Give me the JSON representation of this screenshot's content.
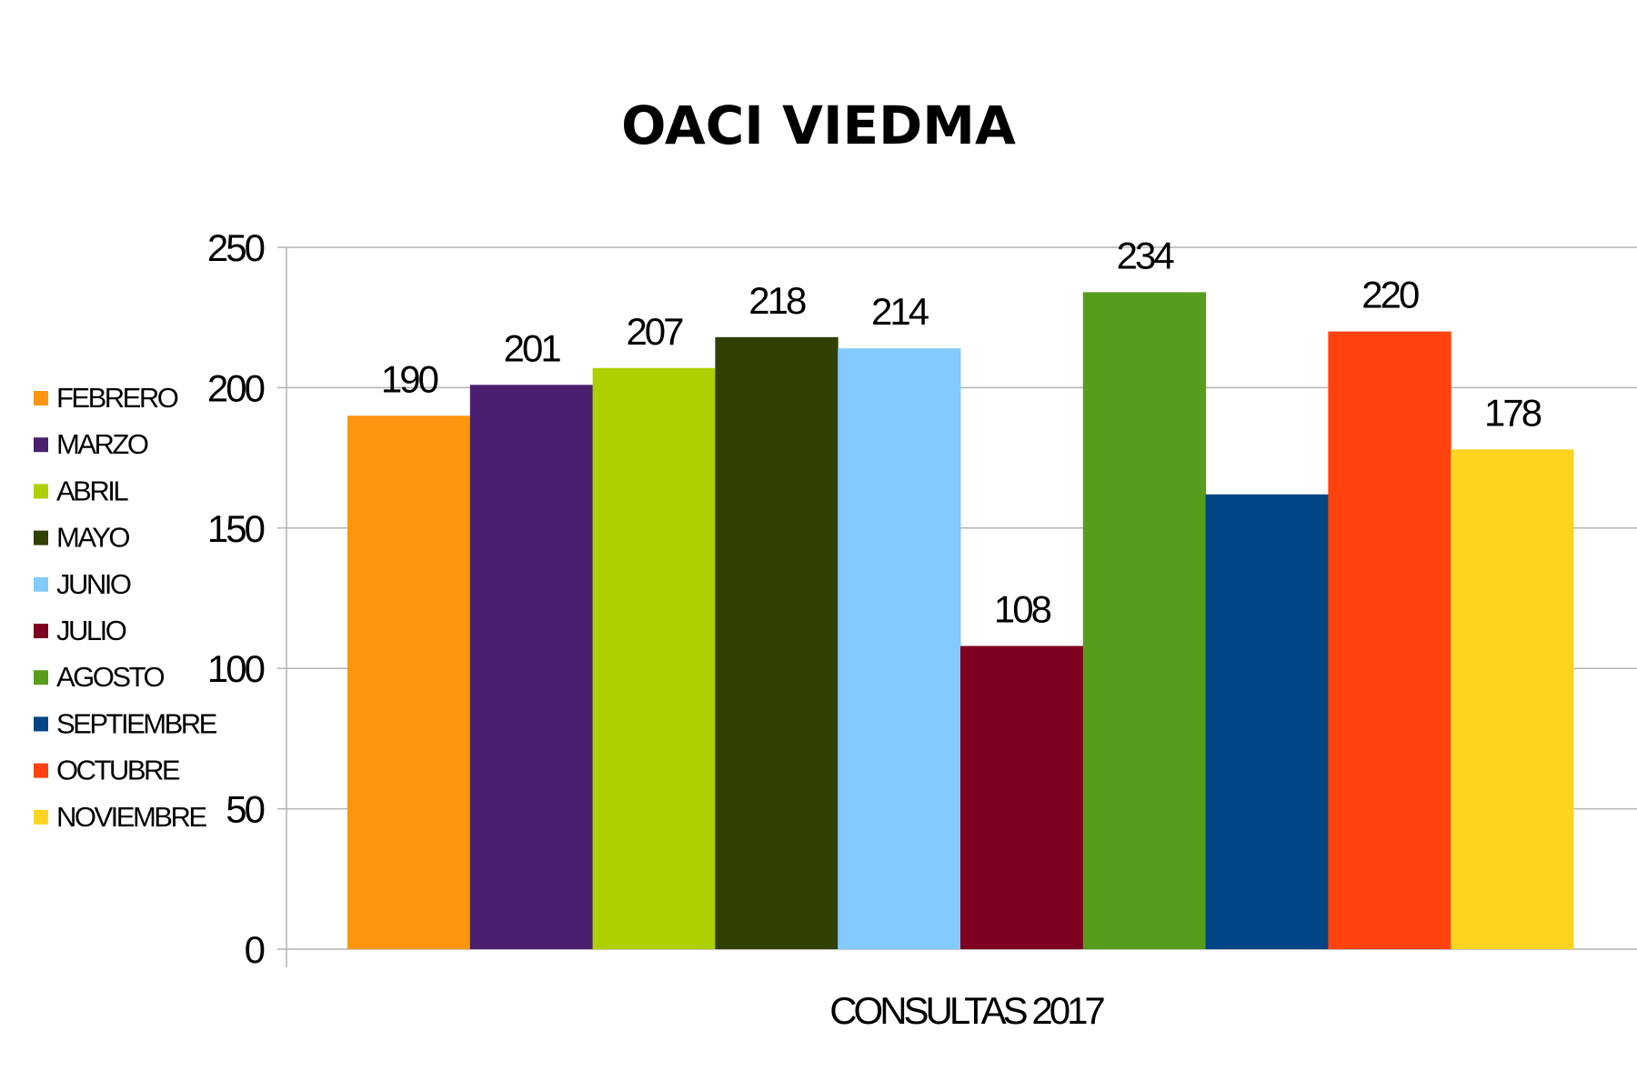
{
  "chart_data": {
    "type": "bar",
    "title": "OACI VIEDMA",
    "xlabel": "CONSULTAS 2017",
    "ylabel": "",
    "ylim": [
      0,
      250
    ],
    "yticks": [
      0,
      50,
      100,
      150,
      200,
      250
    ],
    "grid": true,
    "legend_position": "left",
    "categories": [
      "CONSULTAS 2017"
    ],
    "series": [
      {
        "name": "FEBRERO",
        "values": [
          190
        ],
        "color": "#ff950e",
        "label": "190"
      },
      {
        "name": "MARZO",
        "values": [
          201
        ],
        "color": "#4b1f6f",
        "label": "201"
      },
      {
        "name": "ABRIL",
        "values": [
          207
        ],
        "color": "#aecf00",
        "label": "207"
      },
      {
        "name": "MAYO",
        "values": [
          218
        ],
        "color": "#314004",
        "label": "218"
      },
      {
        "name": "JUNIO",
        "values": [
          214
        ],
        "color": "#83caff",
        "label": "214"
      },
      {
        "name": "JULIO",
        "values": [
          108
        ],
        "color": "#7e0021",
        "label": "108"
      },
      {
        "name": "AGOSTO",
        "values": [
          234
        ],
        "color": "#579d1c",
        "label": "234"
      },
      {
        "name": "SEPTIEMBRE",
        "values": [
          162
        ],
        "color": "#004586",
        "label": ""
      },
      {
        "name": "OCTUBRE",
        "values": [
          220
        ],
        "color": "#ff420e",
        "label": "220"
      },
      {
        "name": "NOVIEMBRE",
        "values": [
          178
        ],
        "color": "#ffd320",
        "label": "178"
      }
    ]
  }
}
